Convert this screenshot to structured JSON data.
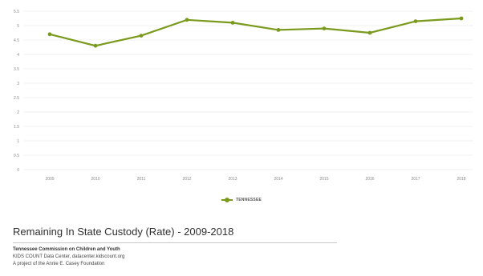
{
  "colors": {
    "series": "#7a9a1e",
    "grid": "#ececec",
    "axis_text": "#8a8a8a"
  },
  "chart_data": {
    "type": "line",
    "title": "Remaining In State Custody (Rate) - 2009-2018",
    "xlabel": "",
    "ylabel": "",
    "x": [
      "2009",
      "2010",
      "2011",
      "2012",
      "2013",
      "2014",
      "2015",
      "2016",
      "2017",
      "2018"
    ],
    "ylim": [
      0,
      5.5
    ],
    "yticks": [
      "0",
      "0.5",
      "1",
      "1.5",
      "2",
      "2.5",
      "3",
      "3.5",
      "4",
      "4.5",
      "5",
      "5.5"
    ],
    "grid": true,
    "legend_position": "bottom-center",
    "series": [
      {
        "name": "TENNESSEE",
        "values": [
          4.7,
          4.3,
          4.65,
          5.2,
          5.1,
          4.85,
          4.9,
          4.75,
          5.15,
          5.25
        ]
      }
    ]
  },
  "footer": {
    "title": "Remaining In State Custody (Rate) - 2009-2018",
    "org": "Tennessee Commission on Children and Youth",
    "source": "KIDS COUNT Data Center, datacenter.kidscount.org",
    "project": "A project of the Annie E. Casey Foundation"
  }
}
